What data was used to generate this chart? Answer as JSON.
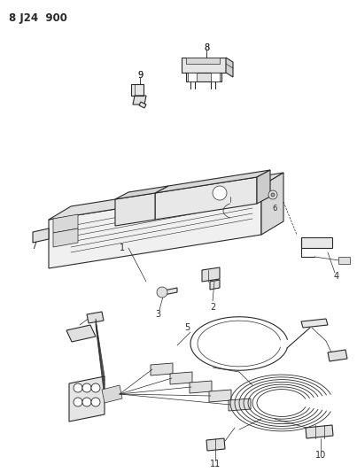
{
  "title": "8 J24  900",
  "bg_color": "#ffffff",
  "lc": "#2a2a2a",
  "figsize": [
    4.03,
    5.33
  ],
  "dpi": 100
}
